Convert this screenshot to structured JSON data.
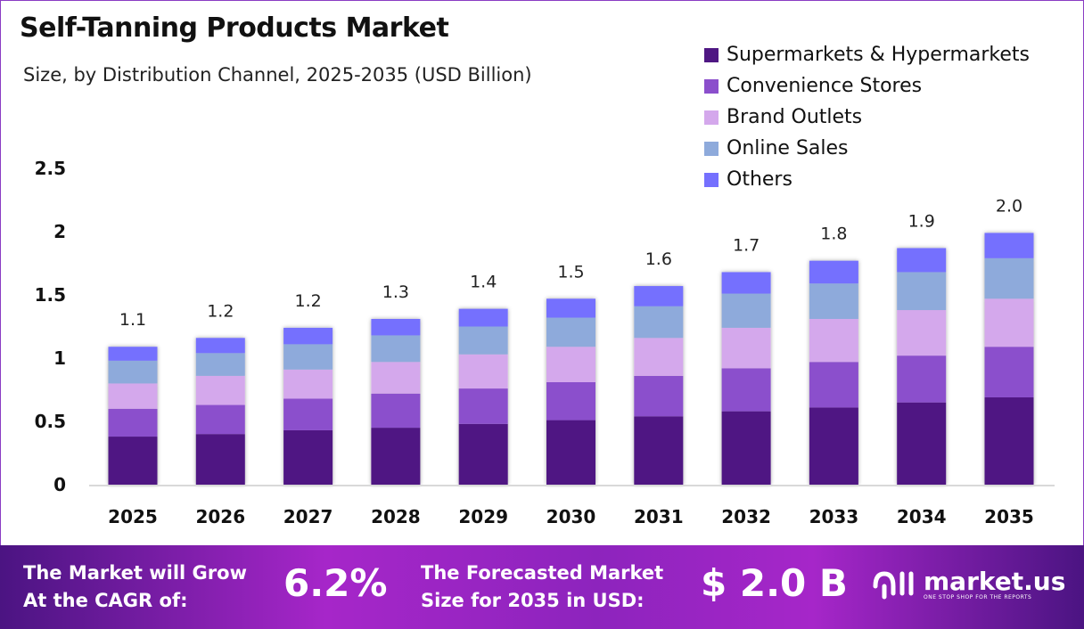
{
  "chart_data": {
    "type": "bar",
    "stacked": true,
    "title": "Self-Tanning Products Market",
    "subtitle": "Size, by Distribution Channel, 2025-2035 (USD Billion)",
    "categories": [
      "2025",
      "2026",
      "2027",
      "2028",
      "2029",
      "2030",
      "2031",
      "2032",
      "2033",
      "2034",
      "2035"
    ],
    "totals_labels": [
      "1.1",
      "1.2",
      "1.2",
      "1.3",
      "1.4",
      "1.5",
      "1.6",
      "1.7",
      "1.8",
      "1.9",
      "2.0"
    ],
    "series": [
      {
        "name": "Supermarkets & Hypermarkets",
        "color": "#4f1783",
        "values": [
          0.38,
          0.4,
          0.43,
          0.45,
          0.48,
          0.51,
          0.54,
          0.58,
          0.61,
          0.65,
          0.69
        ]
      },
      {
        "name": "Convenience Stores",
        "color": "#8b4fcc",
        "values": [
          0.22,
          0.23,
          0.25,
          0.27,
          0.28,
          0.3,
          0.32,
          0.34,
          0.36,
          0.37,
          0.4
        ]
      },
      {
        "name": "Brand Outlets",
        "color": "#d4a8ec",
        "values": [
          0.2,
          0.23,
          0.23,
          0.25,
          0.27,
          0.28,
          0.3,
          0.32,
          0.34,
          0.36,
          0.38
        ]
      },
      {
        "name": "Online Sales",
        "color": "#8eaadb",
        "values": [
          0.18,
          0.18,
          0.2,
          0.21,
          0.22,
          0.23,
          0.25,
          0.27,
          0.28,
          0.3,
          0.32
        ]
      },
      {
        "name": "Others",
        "color": "#7570fe",
        "values": [
          0.11,
          0.12,
          0.13,
          0.13,
          0.14,
          0.15,
          0.16,
          0.17,
          0.18,
          0.19,
          0.2
        ]
      }
    ],
    "yticks": [
      "0",
      "0.5",
      "1",
      "1.5",
      "2",
      "2.5"
    ],
    "ylim": [
      0,
      2.5
    ],
    "grid": false,
    "legend": "top-right"
  },
  "footer": {
    "cagr_text_1": "The Market will Grow",
    "cagr_text_2": "At the CAGR of:",
    "cagr_value": "6.2%",
    "forecast_text_1": "The Forecasted Market",
    "forecast_text_2": "Size for 2035 in USD:",
    "forecast_value": "$ 2.0 B",
    "logo_name": "market.us",
    "logo_tagline": "ONE STOP SHOP FOR THE REPORTS"
  }
}
